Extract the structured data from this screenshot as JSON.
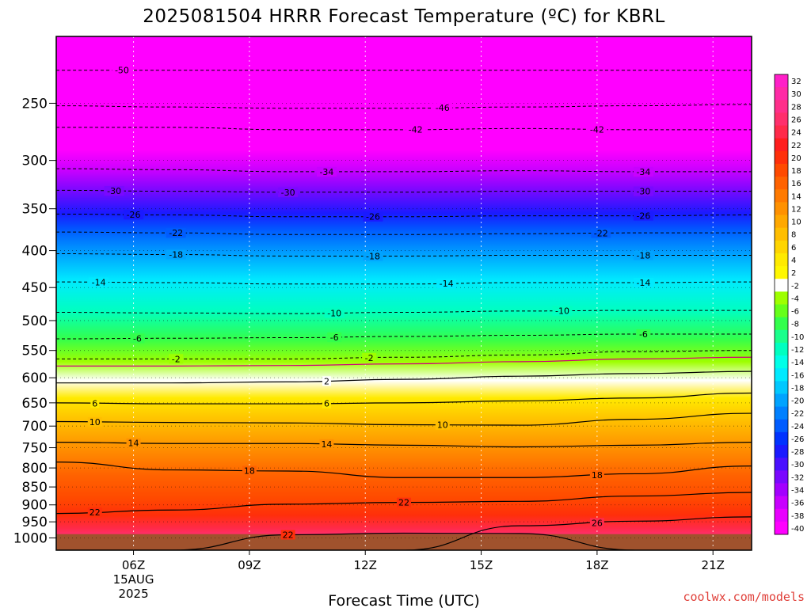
{
  "chart_data": {
    "type": "heatmap",
    "title": "2025081504 HRRR Forecast Temperature (ºC) for KBRL",
    "xlabel": "Forecast Time (UTC)",
    "ylabel": "",
    "credit": "coolwx.com/models",
    "x_ticks": [
      {
        "label": "06Z",
        "hour": 6,
        "sub1": "15AUG",
        "sub2": "2025"
      },
      {
        "label": "09Z",
        "hour": 9
      },
      {
        "label": "12Z",
        "hour": 12
      },
      {
        "label": "15Z",
        "hour": 15
      },
      {
        "label": "18Z",
        "hour": 18
      },
      {
        "label": "21Z",
        "hour": 21
      }
    ],
    "x_range_hours": [
      4,
      22
    ],
    "y_axis": "pressure (hPa), log scale, inverted",
    "y_ticks": [
      250,
      300,
      350,
      400,
      450,
      500,
      550,
      600,
      650,
      700,
      750,
      800,
      850,
      900,
      950,
      1000
    ],
    "y_range_hpa": [
      202,
      1040
    ],
    "surface_pressure_hpa": 988,
    "colorbar_levels": [
      32,
      30,
      28,
      26,
      24,
      22,
      20,
      18,
      16,
      14,
      12,
      10,
      8,
      6,
      4,
      2,
      -2,
      -4,
      -6,
      -8,
      -10,
      -12,
      -14,
      -16,
      -18,
      -20,
      -22,
      -24,
      -26,
      -28,
      -30,
      -32,
      -34,
      -36,
      -38,
      -40
    ],
    "colorbar_colors": [
      "#ff1fc8",
      "#ff2aa6",
      "#ff2f8a",
      "#ff2f6c",
      "#ff2a4a",
      "#ff1e1e",
      "#ff2f0a",
      "#ff4a00",
      "#ff6200",
      "#ff7a00",
      "#ff9100",
      "#ffa800",
      "#ffbe00",
      "#ffd500",
      "#ffea00",
      "#fff700",
      "#ffffff",
      "#9eff00",
      "#66ff1a",
      "#33ff4c",
      "#1aff8c",
      "#00ffc0",
      "#00ffe8",
      "#00eaff",
      "#00c8ff",
      "#00a3ff",
      "#0080ff",
      "#005cff",
      "#0033ff",
      "#1a1aff",
      "#4a10ff",
      "#7a08ff",
      "#a300ff",
      "#c800ff",
      "#e800ff",
      "#ff00ff"
    ],
    "temperature_profile": [
      {
        "p": 200,
        "t": -54
      },
      {
        "p": 220,
        "t": -52
      },
      {
        "p": 235,
        "t": -50
      },
      {
        "p": 255,
        "t": -46
      },
      {
        "p": 270,
        "t": -43
      },
      {
        "p": 290,
        "t": -39
      },
      {
        "p": 310,
        "t": -34
      },
      {
        "p": 330,
        "t": -30
      },
      {
        "p": 355,
        "t": -26
      },
      {
        "p": 375,
        "t": -22
      },
      {
        "p": 405,
        "t": -18
      },
      {
        "p": 440,
        "t": -14
      },
      {
        "p": 485,
        "t": -10
      },
      {
        "p": 530,
        "t": -6
      },
      {
        "p": 570,
        "t": -2
      },
      {
        "p": 605,
        "t": 2
      },
      {
        "p": 640,
        "t": 6
      },
      {
        "p": 690,
        "t": 10
      },
      {
        "p": 750,
        "t": 14
      },
      {
        "p": 820,
        "t": 18
      },
      {
        "p": 880,
        "t": 20
      },
      {
        "p": 930,
        "t": 22
      },
      {
        "p": 970,
        "t": 25
      },
      {
        "p": 990,
        "t": 27
      }
    ],
    "contours": [
      {
        "value": "-50",
        "style": "dashed",
        "p": [
          225,
          225,
          225,
          225,
          225,
          225,
          225
        ],
        "labels": [
          {
            "hour": 5.7,
            "text": "-50"
          }
        ]
      },
      {
        "value": "-46",
        "style": "dashed",
        "p": [
          252,
          253,
          254,
          254,
          253,
          252,
          251
        ],
        "labels": [
          {
            "hour": 14.0,
            "text": "-46"
          }
        ]
      },
      {
        "value": "-42",
        "style": "dashed",
        "p": [
          270,
          270,
          272,
          272,
          271,
          272,
          272
        ],
        "labels": [
          {
            "hour": 13.3,
            "text": "-42"
          },
          {
            "hour": 18.0,
            "text": "-42"
          }
        ]
      },
      {
        "value": "-34",
        "style": "dashed",
        "p": [
          308,
          309,
          311,
          311,
          310,
          311,
          311
        ],
        "labels": [
          {
            "hour": 11.0,
            "text": "-34"
          },
          {
            "hour": 19.2,
            "text": "-34"
          }
        ]
      },
      {
        "value": "-30",
        "style": "dashed",
        "p": [
          330,
          331,
          332,
          332,
          331,
          331,
          331
        ],
        "labels": [
          {
            "hour": 5.5,
            "text": "-30"
          },
          {
            "hour": 10.0,
            "text": "-30"
          },
          {
            "hour": 19.2,
            "text": "-30"
          }
        ]
      },
      {
        "value": "-26",
        "style": "dashed",
        "p": [
          356,
          357,
          359,
          359,
          358,
          358,
          357
        ],
        "labels": [
          {
            "hour": 6.0,
            "text": "-26"
          },
          {
            "hour": 12.2,
            "text": "-26"
          },
          {
            "hour": 19.2,
            "text": "-26"
          }
        ]
      },
      {
        "value": "-22",
        "style": "dashed",
        "p": [
          377,
          378,
          380,
          380,
          379,
          378,
          378
        ],
        "labels": [
          {
            "hour": 7.1,
            "text": "-22"
          },
          {
            "hour": 18.1,
            "text": "-22"
          }
        ]
      },
      {
        "value": "-18",
        "style": "dashed",
        "p": [
          404,
          405,
          407,
          407,
          406,
          406,
          406
        ],
        "labels": [
          {
            "hour": 7.1,
            "text": "-18"
          },
          {
            "hour": 12.2,
            "text": "-18"
          },
          {
            "hour": 19.2,
            "text": "-18"
          }
        ]
      },
      {
        "value": "-14",
        "style": "dashed",
        "p": [
          442,
          443,
          445,
          445,
          443,
          443,
          442
        ],
        "labels": [
          {
            "hour": 5.1,
            "text": "-14"
          },
          {
            "hour": 14.1,
            "text": "-14"
          },
          {
            "hour": 19.2,
            "text": "-14"
          }
        ]
      },
      {
        "value": "-10",
        "style": "dashed",
        "p": [
          487,
          488,
          489,
          487,
          485,
          484,
          484
        ],
        "labels": [
          {
            "hour": 11.2,
            "text": "-10"
          },
          {
            "hour": 17.1,
            "text": "-10"
          }
        ]
      },
      {
        "value": "-6",
        "style": "dashed",
        "p": [
          530,
          529,
          528,
          526,
          524,
          522,
          522
        ],
        "labels": [
          {
            "hour": 6.1,
            "text": "-6"
          },
          {
            "hour": 11.2,
            "text": "-6"
          },
          {
            "hour": 19.2,
            "text": "-6"
          }
        ]
      },
      {
        "value": "-2",
        "style": "dashed",
        "p": [
          565,
          565,
          565,
          562,
          558,
          552,
          550
        ],
        "labels": [
          {
            "hour": 7.1,
            "text": "-2"
          },
          {
            "hour": 12.1,
            "text": "-2"
          }
        ]
      },
      {
        "value": "0",
        "style": "magenta",
        "p": [
          578,
          578,
          577,
          574,
          570,
          565,
          562
        ],
        "labels": []
      },
      {
        "value": "2",
        "style": "solid",
        "p": [
          610,
          610,
          608,
          603,
          597,
          592,
          588
        ],
        "labels": [
          {
            "hour": 11.0,
            "text": "2"
          }
        ]
      },
      {
        "value": "6",
        "style": "solid",
        "p": [
          650,
          652,
          652,
          650,
          646,
          640,
          630
        ],
        "labels": [
          {
            "hour": 5.0,
            "text": "6"
          },
          {
            "hour": 11.0,
            "text": "6"
          }
        ]
      },
      {
        "value": "10",
        "style": "solid",
        "p": [
          690,
          692,
          693,
          697,
          698,
          685,
          672
        ],
        "labels": [
          {
            "hour": 5.0,
            "text": "10"
          },
          {
            "hour": 14.0,
            "text": "10"
          }
        ]
      },
      {
        "value": "14",
        "style": "solid",
        "p": [
          737,
          740,
          740,
          744,
          748,
          744,
          737
        ],
        "labels": [
          {
            "hour": 6.0,
            "text": "14"
          },
          {
            "hour": 11.0,
            "text": "14"
          }
        ]
      },
      {
        "value": "18",
        "style": "solid",
        "p": [
          785,
          805,
          808,
          825,
          825,
          815,
          795
        ],
        "labels": [
          {
            "hour": 9.0,
            "text": "18"
          },
          {
            "hour": 18.0,
            "text": "18"
          }
        ]
      },
      {
        "value": "22",
        "style": "solid",
        "p": [
          925,
          915,
          898,
          893,
          890,
          875,
          865
        ],
        "labels": [
          {
            "hour": 5.0,
            "text": "22"
          },
          {
            "hour": 13.0,
            "text": "22"
          }
        ]
      },
      {
        "value": "26",
        "style": "solid",
        "p": [
          1040,
          1040,
          1040,
          1040,
          962,
          948,
          935
        ],
        "labels": [
          {
            "hour": 18.0,
            "text": "26"
          }
        ]
      },
      {
        "value": "22",
        "style": "solid",
        "p": [
          1040,
          1040,
          990,
          985,
          986,
          1040,
          1040
        ],
        "labels": [
          {
            "hour": 10.0,
            "text": "22"
          }
        ]
      }
    ]
  }
}
